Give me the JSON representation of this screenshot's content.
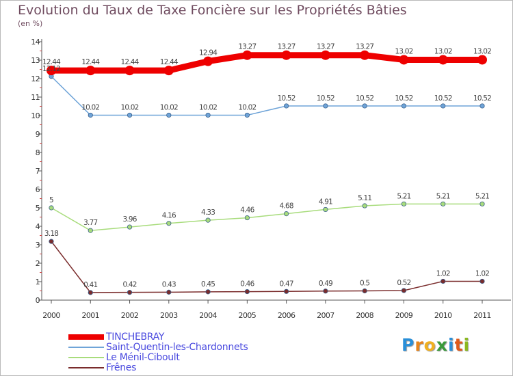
{
  "title": "Evolution du Taux de Taxe Foncière sur les Propriétés Bâties",
  "subtitle": "(en %)",
  "logo": {
    "letters": [
      "P",
      "r",
      "o",
      "x",
      "i",
      "t",
      "i"
    ],
    "colors": [
      "#2a8fd8",
      "#e8841a",
      "#f0b020",
      "#3a9a3a",
      "#2a8fd8",
      "#e05a1a",
      "#8ab820"
    ]
  },
  "chart_data": {
    "type": "line",
    "x": [
      "2000",
      "2001",
      "2002",
      "2003",
      "2004",
      "2005",
      "2006",
      "2007",
      "2008",
      "2009",
      "2010",
      "2011"
    ],
    "ylim": [
      0,
      14
    ],
    "yticks": [
      0,
      1,
      2,
      3,
      4,
      5,
      6,
      7,
      8,
      9,
      10,
      11,
      12,
      13,
      14
    ],
    "grid": false,
    "legend_position": "bottom-left",
    "series": [
      {
        "name": "TINCHEBRAY",
        "color": "#ee0000",
        "emphasis": true,
        "values": [
          12.44,
          12.44,
          12.44,
          12.44,
          12.94,
          13.27,
          13.27,
          13.27,
          13.27,
          13.02,
          13.02,
          13.02
        ],
        "labels": [
          "12.44",
          "12.44",
          "12.44",
          "12.44",
          "12.94",
          "13.27",
          "13.27",
          "13.27",
          "13.27",
          "13.02",
          "13.02",
          "13.02"
        ]
      },
      {
        "name": "Saint-Quentin-les-Chardonnets",
        "color": "#6fa4d8",
        "values": [
          12.12,
          10.02,
          10.02,
          10.02,
          10.02,
          10.02,
          10.52,
          10.52,
          10.52,
          10.52,
          10.52,
          10.52
        ],
        "labels": [
          "12.12",
          "10.02",
          "10.02",
          "10.02",
          "10.02",
          "10.02",
          "10.52",
          "10.52",
          "10.52",
          "10.52",
          "10.52",
          "10.52"
        ]
      },
      {
        "name": "Le Ménil-Ciboult",
        "color": "#a8dc7c",
        "values": [
          5,
          3.77,
          3.96,
          4.16,
          4.33,
          4.46,
          4.68,
          4.91,
          5.11,
          5.21,
          5.21,
          5.21
        ],
        "labels": [
          "5",
          "3.77",
          "3.96",
          "4.16",
          "4.33",
          "4.46",
          "4.68",
          "4.91",
          "5.11",
          "5.21",
          "5.21",
          "5.21"
        ]
      },
      {
        "name": "Frênes",
        "color": "#7a2c2c",
        "values": [
          3.18,
          0.41,
          0.42,
          0.43,
          0.45,
          0.46,
          0.47,
          0.49,
          0.5,
          0.52,
          1.02,
          1.02
        ],
        "labels": [
          "3.18",
          "0.41",
          "0.42",
          "0.43",
          "0.45",
          "0.46",
          "0.47",
          "0.49",
          "0.5",
          "0.52",
          "1.02",
          "1.02"
        ]
      }
    ]
  }
}
